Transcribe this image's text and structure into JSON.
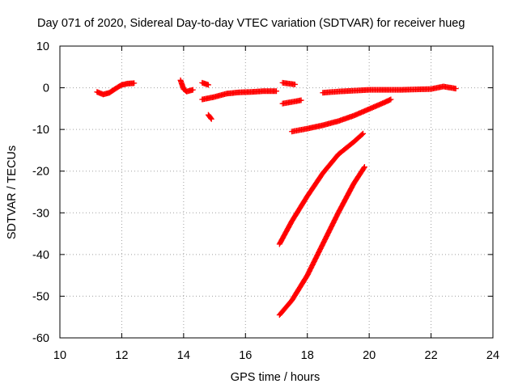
{
  "chart_data": {
    "type": "scatter",
    "title": "Day 071 of 2020, Sidereal Day-to-day VTEC variation (SDTVAR) for receiver hueg",
    "xlabel": "GPS time / hours",
    "ylabel": "SDTVAR / TECUs",
    "xlim": [
      10,
      24
    ],
    "ylim": [
      -60,
      10
    ],
    "xticks": [
      10,
      12,
      14,
      16,
      18,
      20,
      22,
      24
    ],
    "yticks": [
      -60,
      -50,
      -40,
      -30,
      -20,
      -10,
      0,
      10
    ],
    "xtick_labels": [
      "10",
      "12",
      "14",
      "16",
      "18",
      "20",
      "22",
      "24"
    ],
    "ytick_labels": [
      "-60",
      "-50",
      "-40",
      "-30",
      "-20",
      "-10",
      "0",
      "10"
    ],
    "grid": true,
    "marker": "plus",
    "color": "#ff0000",
    "series": [
      {
        "x": [
          11.2,
          11.4,
          11.6,
          11.8,
          12.0,
          12.2,
          12.4
        ],
        "y": [
          -1,
          -1.6,
          -1.2,
          -0.2,
          0.7,
          1.0,
          1.1
        ]
      },
      {
        "x": [
          13.9,
          14.0,
          14.1,
          14.3
        ],
        "y": [
          1.8,
          -0.3,
          -0.9,
          -0.5
        ]
      },
      {
        "x": [
          14.6,
          14.8
        ],
        "y": [
          1.2,
          0.7
        ]
      },
      {
        "x": [
          14.8,
          14.9
        ],
        "y": [
          -6.5,
          -7.5
        ]
      },
      {
        "x": [
          14.6,
          15.0,
          15.4,
          15.8,
          16.2,
          16.6,
          17.0
        ],
        "y": [
          -2.8,
          -2.2,
          -1.4,
          -1.1,
          -1.0,
          -0.8,
          -0.8
        ]
      },
      {
        "x": [
          17.2,
          17.6
        ],
        "y": [
          1.2,
          0.8
        ]
      },
      {
        "x": [
          17.2,
          17.5,
          17.8
        ],
        "y": [
          -3.8,
          -3.4,
          -3.0
        ]
      },
      {
        "x": [
          18.5,
          19.0,
          19.5,
          20.0,
          20.5,
          21.0,
          21.5,
          22.0,
          22.4,
          22.8
        ],
        "y": [
          -1.2,
          -0.9,
          -0.7,
          -0.5,
          -0.5,
          -0.5,
          -0.4,
          -0.3,
          0.3,
          -0.2
        ]
      },
      {
        "x": [
          17.5,
          18.0,
          18.5,
          19.0,
          19.5,
          20.0,
          20.5,
          20.7
        ],
        "y": [
          -10.5,
          -9.8,
          -9.0,
          -8.0,
          -6.7,
          -5.1,
          -3.5,
          -2.8
        ]
      },
      {
        "x": [
          17.1,
          17.5,
          18.0,
          18.5,
          19.0,
          19.5,
          19.8
        ],
        "y": [
          -37.5,
          -32.0,
          -26.0,
          -20.5,
          -16.0,
          -13.0,
          -11.0
        ]
      },
      {
        "x": [
          17.1,
          17.5,
          18.0,
          18.5,
          19.0,
          19.5,
          19.85
        ],
        "y": [
          -54.5,
          -51.0,
          -45.0,
          -37.5,
          -30.0,
          -23.0,
          -19.0
        ]
      }
    ]
  }
}
